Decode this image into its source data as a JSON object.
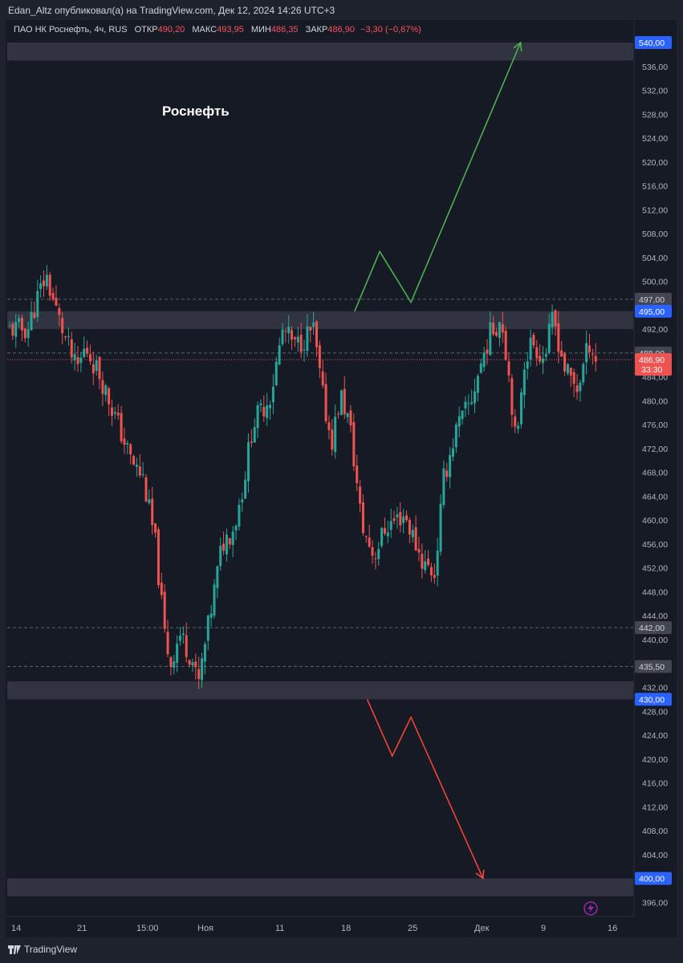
{
  "header": {
    "publisher": "Edan_Altz опубликовал(а) на TradingView.com, Дек 12, 2024 14:26 UTC+3"
  },
  "legend": {
    "symbol": "ПАО НК Роснефть, 4ч, RUS",
    "open_label": "ОТКР",
    "open": "490,20",
    "high_label": "МАКС",
    "high": "493,95",
    "low_label": "МИН",
    "low": "486,35",
    "close_label": "ЗАКР",
    "close": "486,90",
    "change": "−3,30 (−0,67%)"
  },
  "footer": {
    "brand": "TradingView"
  },
  "colors": {
    "background": "#161a25",
    "up": "#26a69a",
    "down": "#ef5350",
    "zone": "#363a45",
    "axis_text": "#b2b5be",
    "target_up": "#4caf50",
    "target_down": "#f44336",
    "level_label": "#2962ff"
  },
  "chart_data": {
    "type": "candlestick",
    "title": "Роснефть",
    "xlabel": "",
    "ylabel": "",
    "ylim": [
      394,
      542
    ],
    "y_ticks": [
      "396,00",
      "400,00",
      "404,00",
      "408,00",
      "412,00",
      "416,00",
      "420,00",
      "424,00",
      "428,00",
      "432,00",
      "436,00",
      "440,00",
      "444,00",
      "448,00",
      "452,00",
      "456,00",
      "460,00",
      "464,00",
      "468,00",
      "472,00",
      "476,00",
      "480,00",
      "484,00",
      "488,00",
      "492,00",
      "496,00",
      "500,00",
      "504,00",
      "508,00",
      "512,00",
      "516,00",
      "520,00",
      "524,00",
      "528,00",
      "532,00",
      "536,00"
    ],
    "x_ticks": [
      "14",
      "21",
      "15:00",
      "Ноя",
      "11",
      "18",
      "25",
      "Дек",
      "9",
      "16"
    ],
    "grid": false,
    "zones": [
      {
        "from": 537,
        "to": 540
      },
      {
        "from": 492,
        "to": 495
      },
      {
        "from": 430,
        "to": 433
      },
      {
        "from": 397,
        "to": 400
      }
    ],
    "dashed_levels": [
      497,
      488,
      442,
      435.5
    ],
    "price_labels": [
      {
        "text": "540,00",
        "value": 540,
        "kind": "level"
      },
      {
        "text": "497,00",
        "value": 497,
        "kind": "plain"
      },
      {
        "text": "495,00",
        "value": 495,
        "kind": "level"
      },
      {
        "text": "488,00",
        "value": 488,
        "kind": "plain"
      },
      {
        "text": "442,00",
        "value": 442,
        "kind": "plain"
      },
      {
        "text": "435,50",
        "value": 435.5,
        "kind": "plain"
      },
      {
        "text": "430,00",
        "value": 430,
        "kind": "level"
      },
      {
        "text": "400,00",
        "value": 400,
        "kind": "level"
      }
    ],
    "last_price": {
      "value": 486.9,
      "text": "486,90",
      "countdown": "33:30"
    },
    "scenario_up": [
      [
        0.555,
        495
      ],
      [
        0.595,
        505
      ],
      [
        0.645,
        496.5
      ],
      [
        0.82,
        540
      ]
    ],
    "scenario_down": [
      [
        0.575,
        430
      ],
      [
        0.615,
        420.5
      ],
      [
        0.645,
        427
      ],
      [
        0.76,
        400
      ]
    ],
    "keypoints": [
      [
        0.0,
        492
      ],
      [
        0.03,
        492
      ],
      [
        0.045,
        497
      ],
      [
        0.06,
        501
      ],
      [
        0.08,
        494
      ],
      [
        0.1,
        488
      ],
      [
        0.11,
        485
      ],
      [
        0.125,
        489
      ],
      [
        0.15,
        484
      ],
      [
        0.175,
        477
      ],
      [
        0.2,
        470
      ],
      [
        0.22,
        467
      ],
      [
        0.24,
        456
      ],
      [
        0.255,
        441
      ],
      [
        0.265,
        436
      ],
      [
        0.28,
        441
      ],
      [
        0.3,
        437
      ],
      [
        0.31,
        432
      ],
      [
        0.33,
        444
      ],
      [
        0.35,
        456
      ],
      [
        0.37,
        459
      ],
      [
        0.385,
        466
      ],
      [
        0.4,
        476
      ],
      [
        0.43,
        481
      ],
      [
        0.45,
        492
      ],
      [
        0.47,
        489
      ],
      [
        0.5,
        492
      ],
      [
        0.515,
        481
      ],
      [
        0.53,
        473
      ],
      [
        0.545,
        481
      ],
      [
        0.56,
        476
      ],
      [
        0.58,
        459
      ],
      [
        0.6,
        454
      ],
      [
        0.62,
        459
      ],
      [
        0.65,
        461
      ],
      [
        0.68,
        453
      ],
      [
        0.7,
        451
      ],
      [
        0.715,
        467
      ],
      [
        0.735,
        475
      ],
      [
        0.76,
        480
      ],
      [
        0.77,
        484
      ],
      [
        0.79,
        491
      ],
      [
        0.81,
        494
      ],
      [
        0.825,
        482
      ],
      [
        0.835,
        471
      ],
      [
        0.845,
        486
      ],
      [
        0.86,
        490
      ],
      [
        0.88,
        487
      ],
      [
        0.895,
        494
      ],
      [
        0.915,
        485
      ],
      [
        0.935,
        482
      ],
      [
        0.955,
        490
      ],
      [
        0.965,
        487
      ]
    ],
    "candle_count": 190
  }
}
